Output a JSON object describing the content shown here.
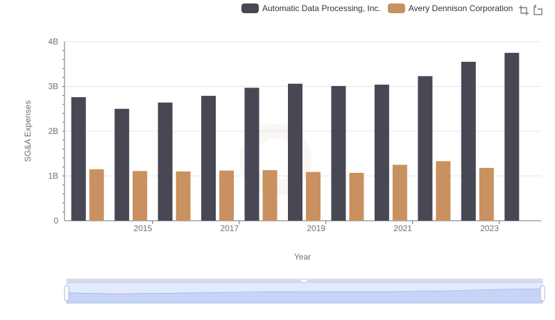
{
  "chart_data": {
    "type": "bar",
    "xlabel": "Year",
    "ylabel": "SG&A Expenses",
    "years": [
      2014,
      2015,
      2016,
      2017,
      2018,
      2019,
      2020,
      2021,
      2022,
      2023,
      2024
    ],
    "x_tick_labels": [
      "2015",
      "2017",
      "2019",
      "2021",
      "2023"
    ],
    "y_tick_labels": [
      "0",
      "1B",
      "2B",
      "3B",
      "4B"
    ],
    "ylim": [
      0,
      4000000000
    ],
    "grid": true,
    "legend_position": "top-right",
    "series": [
      {
        "name": "Automatic Data Processing, Inc.",
        "color": "#484855",
        "values": [
          2760000000,
          2500000000,
          2640000000,
          2790000000,
          2970000000,
          3060000000,
          3010000000,
          3040000000,
          3230000000,
          3550000000,
          3750000000
        ]
      },
      {
        "name": "Avery Dennison Corporation",
        "color": "#c8915f",
        "values": [
          1150000000,
          1110000000,
          1100000000,
          1120000000,
          1130000000,
          1090000000,
          1070000000,
          1250000000,
          1330000000,
          1180000000,
          null
        ]
      }
    ]
  },
  "toolbar": {
    "icons": [
      "zoom-icon",
      "restore-icon"
    ]
  }
}
